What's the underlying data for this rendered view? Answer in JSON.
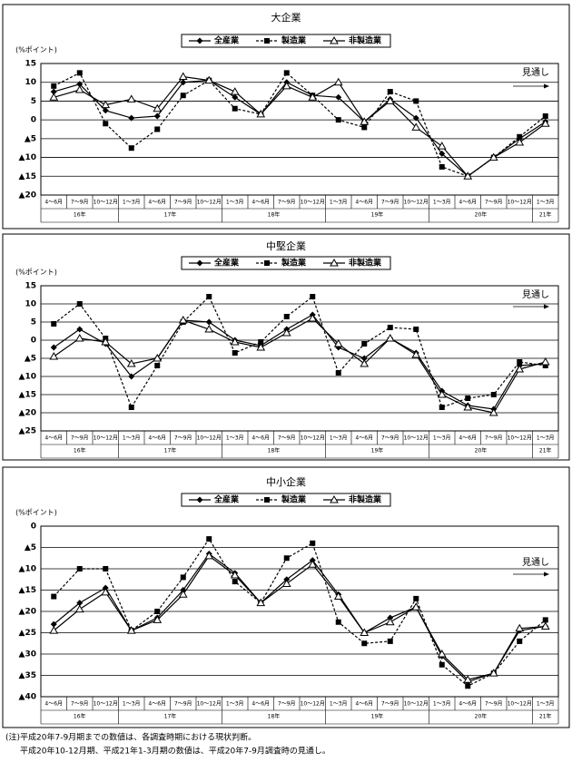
{
  "chart_data": [
    {
      "type": "line",
      "title": "大企業",
      "y_label": "(%ポイント)",
      "forecast_label": "見通し",
      "categories": [
        "4～6月",
        "7～9月",
        "10～12月",
        "1～3月",
        "4～6月",
        "7～9月",
        "10～12月",
        "1～3月",
        "4～6月",
        "7～9月",
        "10～12月",
        "1～3月",
        "4～6月",
        "7～9月",
        "10～12月",
        "1～3月",
        "4～6月",
        "7～9月",
        "10～12月",
        "1～3月"
      ],
      "years": [
        "16年",
        "16年",
        "16年",
        "17年",
        "17年",
        "17年",
        "17年",
        "18年",
        "18年",
        "18年",
        "18年",
        "19年",
        "19年",
        "19年",
        "19年",
        "20年",
        "20年",
        "20年",
        "20年",
        "21年"
      ],
      "series": [
        {
          "name": "全産業",
          "color": "#000000",
          "marker": "diamond",
          "line_style": "solid",
          "values": [
            7.5,
            9.5,
            2.5,
            0.5,
            1,
            10,
            10.5,
            6,
            1.5,
            10,
            6.5,
            6,
            -0.5,
            5.5,
            0.5,
            -9,
            -15,
            -10,
            -5,
            -0.5
          ]
        },
        {
          "name": "製造業",
          "color": "#000000",
          "marker": "square",
          "line_style": "dashed",
          "values": [
            9,
            12.5,
            -1,
            -7.5,
            -2.5,
            6.5,
            10.5,
            3,
            1.5,
            12.5,
            6.5,
            0,
            -2,
            7.5,
            5,
            -12.5,
            -15,
            -10,
            -4.5,
            1
          ]
        },
        {
          "name": "非製造業",
          "color": "#000000",
          "marker": "triangle",
          "line_style": "solid",
          "values": [
            6,
            8,
            4,
            5.5,
            3,
            11.5,
            10.5,
            7.5,
            1.5,
            9,
            6,
            10,
            -0.5,
            5,
            -2,
            -7,
            -15,
            -10,
            -6,
            -1
          ]
        }
      ],
      "ylim": [
        -20,
        15
      ],
      "yticks": [
        15,
        10,
        5,
        0,
        {
          "value": -5,
          "label": "▲5"
        },
        {
          "value": -10,
          "label": "▲10"
        },
        {
          "value": -15,
          "label": "▲15"
        },
        {
          "value": -20,
          "label": "▲20"
        }
      ],
      "grid": true
    },
    {
      "type": "line",
      "title": "中堅企業",
      "y_label": "(%ポイント)",
      "forecast_label": "見通し",
      "categories": [
        "4～6月",
        "7～9月",
        "10～12月",
        "1～3月",
        "4～6月",
        "7～9月",
        "10～12月",
        "1～3月",
        "4～6月",
        "7～9月",
        "10～12月",
        "1～3月",
        "4～6月",
        "7～9月",
        "10～12月",
        "1～3月",
        "4～6月",
        "7～9月",
        "10～12月",
        "1～3月"
      ],
      "years": [
        "16年",
        "16年",
        "16年",
        "17年",
        "17年",
        "17年",
        "17年",
        "18年",
        "18年",
        "18年",
        "18年",
        "19年",
        "19年",
        "19年",
        "19年",
        "20年",
        "20年",
        "20年",
        "20年",
        "21年"
      ],
      "series": [
        {
          "name": "全産業",
          "color": "#000000",
          "marker": "diamond",
          "line_style": "solid",
          "values": [
            -2,
            3,
            -1,
            -10,
            -5,
            5.5,
            5,
            0,
            -1.5,
            3,
            7,
            -2,
            -5,
            0.5,
            -3.5,
            -14,
            -18,
            -19,
            -7,
            -6.5
          ]
        },
        {
          "name": "製造業",
          "color": "#000000",
          "marker": "square",
          "line_style": "dashed",
          "values": [
            4.5,
            10,
            0.5,
            -18.5,
            -7,
            5,
            12,
            -3.5,
            -0.5,
            6.5,
            12,
            -9,
            -1,
            3.5,
            3,
            -18.5,
            -16,
            -15,
            -6,
            -7
          ]
        },
        {
          "name": "非製造業",
          "color": "#000000",
          "marker": "triangle",
          "line_style": "solid",
          "values": [
            -4.5,
            0.5,
            -0.5,
            -6.5,
            -5,
            5.5,
            3,
            -0.5,
            -2,
            2,
            6,
            -1,
            -6.5,
            0.5,
            -4,
            -15,
            -18.5,
            -20,
            -8,
            -6
          ]
        }
      ],
      "ylim": [
        -25,
        15
      ],
      "yticks": [
        15,
        10,
        5,
        0,
        {
          "value": -5,
          "label": "▲5"
        },
        {
          "value": -10,
          "label": "▲10"
        },
        {
          "value": -15,
          "label": "▲15"
        },
        {
          "value": -20,
          "label": "▲20"
        },
        {
          "value": -25,
          "label": "▲25"
        }
      ],
      "grid": true
    },
    {
      "type": "line",
      "title": "中小企業",
      "y_label": "(%ポイント)",
      "forecast_label": "見通し",
      "categories": [
        "4～6月",
        "7～9月",
        "10～12月",
        "1～3月",
        "4～6月",
        "7～9月",
        "10～12月",
        "1～3月",
        "4～6月",
        "7～9月",
        "10～12月",
        "1～3月",
        "4～6月",
        "7～9月",
        "10～12月",
        "1～3月",
        "4～6月",
        "7～9月",
        "10～12月",
        "1～3月"
      ],
      "years": [
        "16年",
        "16年",
        "16年",
        "17年",
        "17年",
        "17年",
        "17年",
        "18年",
        "18年",
        "18年",
        "18年",
        "19年",
        "19年",
        "19年",
        "19年",
        "20年",
        "20年",
        "20年",
        "20年",
        "21年"
      ],
      "series": [
        {
          "name": "全産業",
          "color": "#000000",
          "marker": "diamond",
          "line_style": "solid",
          "values": [
            -23,
            -18,
            -14.5,
            -24.5,
            -21.5,
            -15,
            -6.5,
            -11,
            -18,
            -12.5,
            -8,
            -16,
            -25,
            -21.5,
            -19,
            -30.5,
            -36.5,
            -34.5,
            -24.5,
            -23.5
          ]
        },
        {
          "name": "製造業",
          "color": "#000000",
          "marker": "square",
          "line_style": "dashed",
          "values": [
            -16.5,
            -10,
            -10,
            -24.5,
            -20,
            -12,
            -3,
            -13,
            -18,
            -7.5,
            -4,
            -22.5,
            -27.5,
            -27,
            -17,
            -32.5,
            -37.5,
            -34.5,
            -27,
            -22
          ]
        },
        {
          "name": "非製造業",
          "color": "#000000",
          "marker": "triangle",
          "line_style": "solid",
          "values": [
            -24.5,
            -19.5,
            -15.5,
            -24.5,
            -22,
            -16,
            -7,
            -11.5,
            -18,
            -13.5,
            -9,
            -16.5,
            -25,
            -22.5,
            -19,
            -30,
            -36,
            -34.5,
            -24,
            -23.5
          ]
        }
      ],
      "ylim": [
        -40,
        0
      ],
      "yticks": [
        0,
        {
          "value": -5,
          "label": "▲5"
        },
        {
          "value": -10,
          "label": "▲10"
        },
        {
          "value": -15,
          "label": "▲15"
        },
        {
          "value": -20,
          "label": "▲20"
        },
        {
          "value": -25,
          "label": "▲25"
        },
        {
          "value": -30,
          "label": "▲30"
        },
        {
          "value": -35,
          "label": "▲35"
        },
        {
          "value": -40,
          "label": "▲40"
        }
      ],
      "grid": true
    }
  ],
  "notes": [
    "(注)平成20年7-9月期までの数値は、各調査時期における現状判断。",
    "平成20年10-12月期、平成21年1-3月期の数値は、平成20年7-9月調査時の見通し。"
  ]
}
